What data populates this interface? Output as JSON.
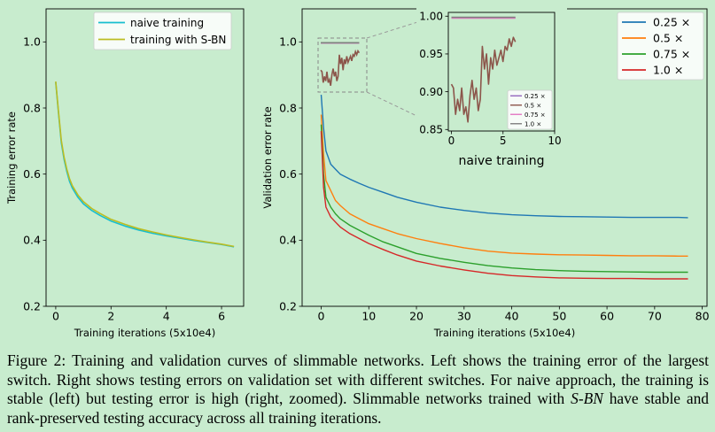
{
  "chart_data": [
    {
      "type": "line",
      "xlabel": "Training iterations (5x10e4)",
      "ylabel": "Training error rate",
      "xlim": [
        -0.35,
        6.8
      ],
      "ylim": [
        0.2,
        1.1
      ],
      "xticks": [
        "0",
        "2",
        "4",
        "6"
      ],
      "yticks": [
        "0.2",
        "0.4",
        "0.6",
        "0.8",
        "1.0"
      ],
      "legend_position": "top-right",
      "series": [
        {
          "name": "naive training",
          "color": "#17becf",
          "x": [
            0,
            0.1,
            0.2,
            0.3,
            0.4,
            0.5,
            0.6,
            0.8,
            1.0,
            1.3,
            1.6,
            2.0,
            2.5,
            3.0,
            3.5,
            4.0,
            4.5,
            5.0,
            5.5,
            6.0,
            6.45
          ],
          "y": [
            0.878,
            0.785,
            0.695,
            0.645,
            0.608,
            0.578,
            0.558,
            0.53,
            0.51,
            0.49,
            0.475,
            0.458,
            0.443,
            0.431,
            0.421,
            0.413,
            0.406,
            0.399,
            0.393,
            0.387,
            0.38
          ]
        },
        {
          "name": "training with S-BN",
          "color": "#bcbd22",
          "x": [
            0,
            0.1,
            0.2,
            0.3,
            0.4,
            0.5,
            0.6,
            0.8,
            1.0,
            1.3,
            1.6,
            2.0,
            2.5,
            3.0,
            3.5,
            4.0,
            4.5,
            5.0,
            5.5,
            6.0,
            6.45
          ],
          "y": [
            0.88,
            0.79,
            0.702,
            0.652,
            0.615,
            0.586,
            0.565,
            0.537,
            0.517,
            0.496,
            0.481,
            0.463,
            0.448,
            0.435,
            0.425,
            0.416,
            0.408,
            0.401,
            0.394,
            0.388,
            0.381
          ]
        }
      ]
    },
    {
      "type": "line",
      "xlabel": "Training iterations (5x10e4)",
      "ylabel": "Validation error rate",
      "xlim": [
        -4,
        81
      ],
      "ylim": [
        0.2,
        1.1
      ],
      "xticks": [
        "0",
        "10",
        "20",
        "30",
        "40",
        "50",
        "60",
        "70",
        "80"
      ],
      "yticks": [
        "0.2",
        "0.4",
        "0.6",
        "0.8",
        "1.0"
      ],
      "legend_position": "top-right",
      "series": [
        {
          "name": "0.25 ×",
          "color": "#1f77b4",
          "x": [
            0,
            0.5,
            1,
            2,
            3,
            4,
            6,
            8,
            10,
            13,
            16,
            20,
            25,
            30,
            35,
            40,
            45,
            50,
            55,
            60,
            65,
            70,
            75,
            77
          ],
          "y": [
            0.84,
            0.74,
            0.67,
            0.63,
            0.615,
            0.6,
            0.585,
            0.572,
            0.56,
            0.545,
            0.53,
            0.515,
            0.5,
            0.49,
            0.482,
            0.477,
            0.474,
            0.472,
            0.471,
            0.47,
            0.469,
            0.469,
            0.469,
            0.468
          ]
        },
        {
          "name": "0.5 ×",
          "color": "#ff7f0e",
          "x": [
            0,
            0.5,
            1,
            2,
            3,
            4,
            6,
            8,
            10,
            13,
            16,
            20,
            25,
            30,
            35,
            40,
            45,
            50,
            55,
            60,
            65,
            70,
            75,
            77
          ],
          "y": [
            0.78,
            0.66,
            0.58,
            0.55,
            0.52,
            0.505,
            0.48,
            0.465,
            0.45,
            0.435,
            0.42,
            0.405,
            0.39,
            0.377,
            0.367,
            0.361,
            0.358,
            0.356,
            0.355,
            0.354,
            0.353,
            0.353,
            0.352,
            0.352
          ]
        },
        {
          "name": "0.75 ×",
          "color": "#2ca02c",
          "x": [
            0,
            0.5,
            1,
            2,
            3,
            4,
            6,
            8,
            10,
            13,
            16,
            20,
            25,
            30,
            35,
            40,
            45,
            50,
            55,
            60,
            65,
            70,
            75,
            77
          ],
          "y": [
            0.75,
            0.6,
            0.53,
            0.5,
            0.48,
            0.465,
            0.445,
            0.43,
            0.415,
            0.395,
            0.38,
            0.36,
            0.345,
            0.333,
            0.323,
            0.316,
            0.311,
            0.308,
            0.306,
            0.305,
            0.304,
            0.303,
            0.303,
            0.303
          ]
        },
        {
          "name": "1.0 ×",
          "color": "#d62728",
          "x": [
            0,
            0.5,
            1,
            2,
            3,
            4,
            6,
            8,
            10,
            13,
            16,
            20,
            25,
            30,
            35,
            40,
            45,
            50,
            55,
            60,
            65,
            70,
            75,
            77
          ],
          "y": [
            0.73,
            0.56,
            0.5,
            0.47,
            0.455,
            0.44,
            0.42,
            0.405,
            0.39,
            0.372,
            0.355,
            0.337,
            0.322,
            0.31,
            0.3,
            0.293,
            0.289,
            0.286,
            0.285,
            0.284,
            0.284,
            0.283,
            0.283,
            0.283
          ]
        }
      ]
    },
    {
      "type": "line",
      "xlabel": "naive training",
      "xlim": [
        -0.3,
        10
      ],
      "ylim": [
        0.848,
        1.005
      ],
      "xticks": [
        "0",
        "5",
        "10"
      ],
      "yticks": [
        "0.85",
        "0.90",
        "0.95",
        "1.00"
      ],
      "legend_position": "lower-right",
      "series": [
        {
          "name": "0.25 ×",
          "color": "#9467bd",
          "x": [
            0,
            1,
            2,
            3,
            4,
            5,
            6.2
          ],
          "y": [
            0.998,
            0.998,
            0.998,
            0.998,
            0.998,
            0.998,
            0.998
          ]
        },
        {
          "name": "0.5 ×",
          "color": "#8c564b",
          "x": [
            0,
            0.2,
            0.4,
            0.6,
            0.8,
            1.0,
            1.2,
            1.4,
            1.6,
            1.8,
            2.0,
            2.2,
            2.4,
            2.6,
            2.8,
            3.0,
            3.2,
            3.4,
            3.6,
            3.8,
            4.0,
            4.2,
            4.4,
            4.6,
            4.8,
            5.0,
            5.2,
            5.4,
            5.6,
            5.8,
            6.0,
            6.2
          ],
          "y": [
            0.91,
            0.905,
            0.87,
            0.89,
            0.875,
            0.905,
            0.87,
            0.88,
            0.86,
            0.895,
            0.915,
            0.89,
            0.905,
            0.875,
            0.89,
            0.96,
            0.93,
            0.95,
            0.91,
            0.945,
            0.93,
            0.955,
            0.935,
            0.945,
            0.955,
            0.94,
            0.96,
            0.955,
            0.97,
            0.96,
            0.972,
            0.966
          ]
        },
        {
          "name": "0.75 ×",
          "color": "#e377c2",
          "x": [
            0,
            1,
            2,
            3,
            4,
            5,
            6.2
          ],
          "y": [
            0.9975,
            0.9975,
            0.9975,
            0.9975,
            0.9975,
            0.9975,
            0.9975
          ]
        },
        {
          "name": "1.0 ×",
          "color": "#7f7f7f",
          "x": [
            0,
            1,
            2,
            3,
            4,
            5,
            6.2
          ],
          "y": [
            0.9985,
            0.9985,
            0.9985,
            0.9985,
            0.9985,
            0.9985,
            0.9985
          ]
        }
      ]
    }
  ],
  "caption": {
    "part1": "Figure 2: Training and validation curves of slimmable networks. Left shows the training error of the largest switch. Right shows testing errors on validation set with different switches. For naive approach, the training is stable (left) but testing error is high (right, zoomed). Slimmable networks trained with ",
    "italic": "S-BN",
    "part2": " have stable and rank-preserved testing accuracy across all training iterations."
  }
}
